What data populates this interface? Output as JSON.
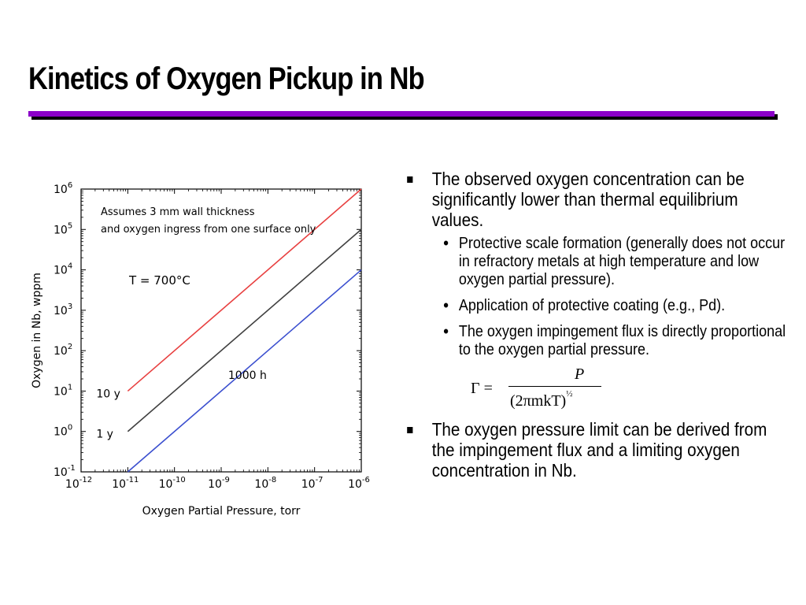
{
  "slide": {
    "title": "Kinetics of Oxygen Pickup in Nb",
    "accent_color": "#8b00c8"
  },
  "bullets": {
    "items": [
      {
        "text": "The observed oxygen concentration can be significantly lower than thermal equilibrium values.",
        "sub": [
          "Protective scale formation (generally does not occur in refractory metals at high temperature and low oxygen partial pressure).",
          "Application of protective coating (e.g., Pd).",
          "The oxygen impingement flux is directly proportional to the oxygen partial pressure."
        ]
      },
      {
        "text": "The oxygen pressure limit can be derived from the impingement flux and a limiting oxygen concentration in Nb.",
        "sub": []
      }
    ],
    "formula": {
      "lhs": "Γ =",
      "numerator": "P",
      "denominator": "(2πmkT)",
      "exponent": "½"
    }
  },
  "chart_data": {
    "type": "line",
    "xlabel": "Oxygen Partial Pressure, torr",
    "ylabel": "Oxygen in Nb, wppm",
    "xscale": "log",
    "yscale": "log",
    "xlim_exp": [
      -12,
      -6
    ],
    "ylim_exp": [
      -1,
      6
    ],
    "x_tick_base": "10",
    "x_tick_exponents": [
      "-12",
      "-11",
      "-10",
      "-9",
      "-8",
      "-7",
      "-6"
    ],
    "y_tick_base": "10",
    "y_tick_exponents": [
      "-1",
      "0",
      "1",
      "2",
      "3",
      "4",
      "5",
      "6"
    ],
    "annotation_note": "Assumes 3 mm wall thickness and oxygen ingress from one surface only",
    "annotation_temp": "T = 700°C",
    "grid": false,
    "series": [
      {
        "name": "10 y",
        "color": "#e84040",
        "x_exp": [
          -11,
          -6
        ],
        "y_exp": [
          1,
          6
        ]
      },
      {
        "name": "1 y",
        "color": "#404040",
        "x_exp": [
          -11,
          -6
        ],
        "y_exp": [
          0,
          5
        ]
      },
      {
        "name": "1000 h",
        "color": "#3b4fcf",
        "x_exp": [
          -11,
          -6
        ],
        "y_exp": [
          -1,
          4
        ]
      }
    ]
  }
}
